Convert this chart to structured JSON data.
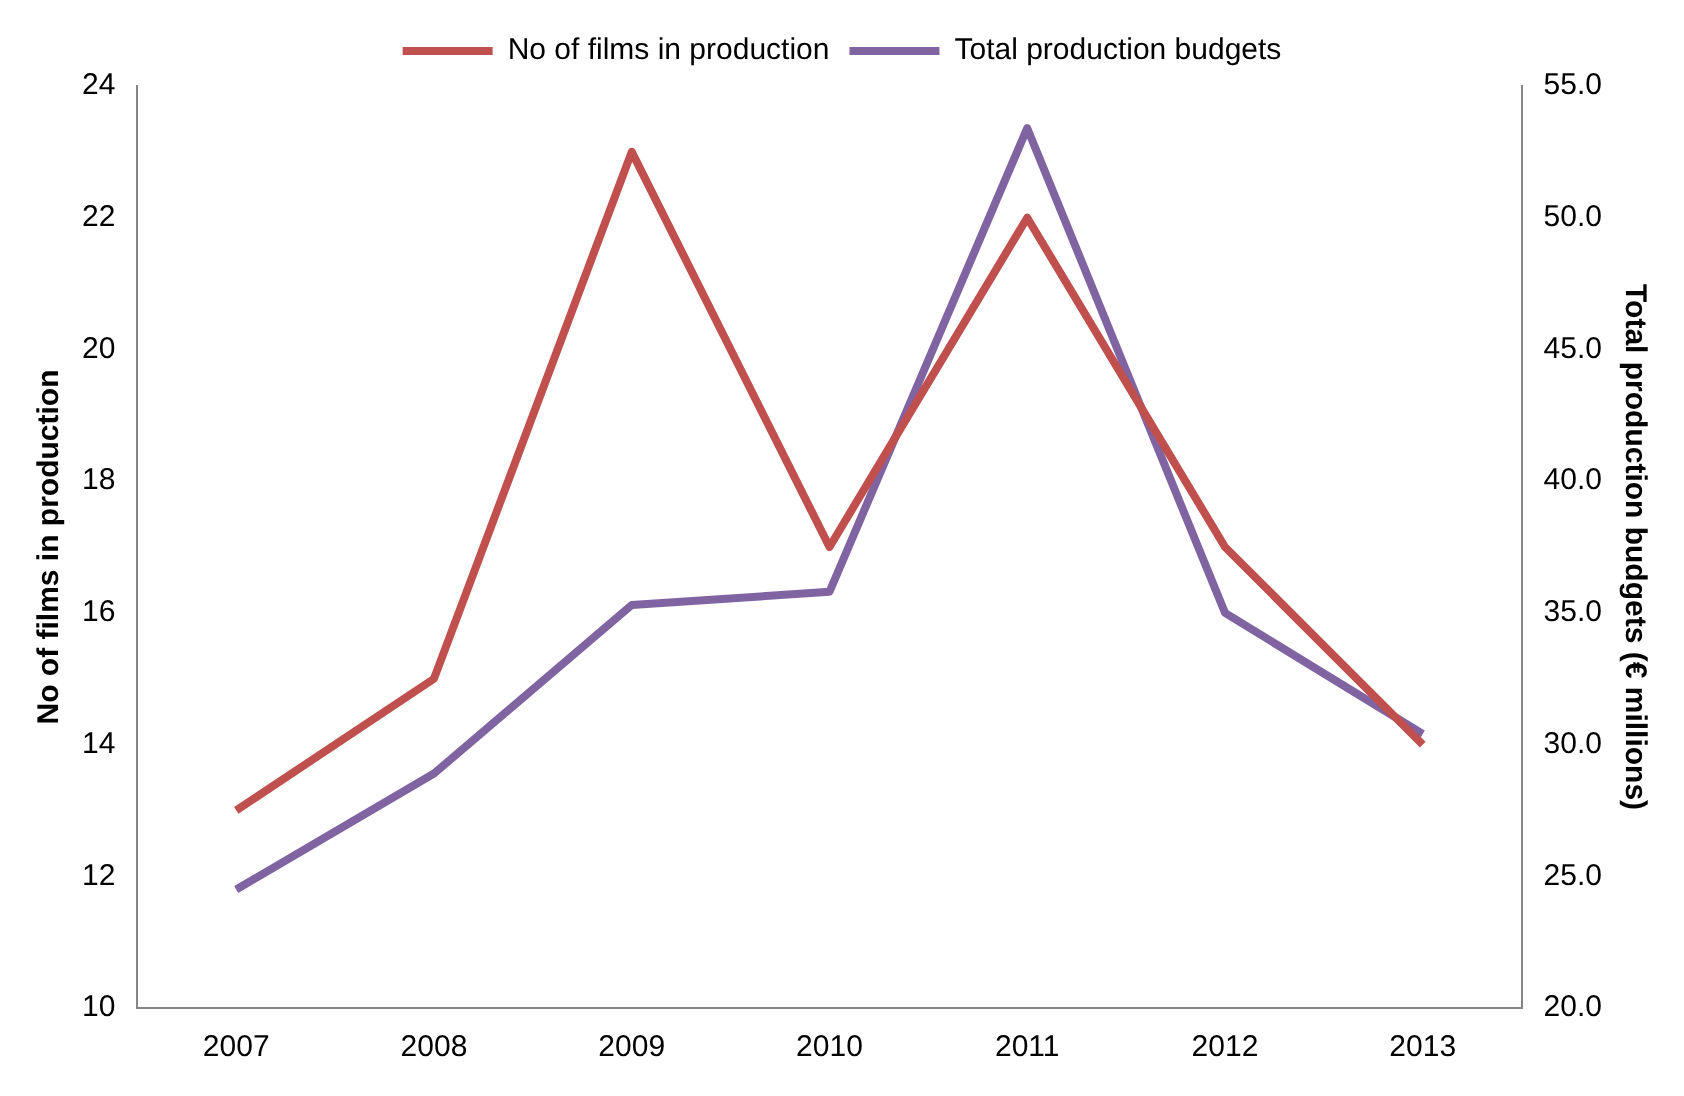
{
  "chart_data": {
    "type": "line",
    "categories": [
      "2007",
      "2008",
      "2009",
      "2010",
      "2011",
      "2012",
      "2013"
    ],
    "series": [
      {
        "name": "No of films in production",
        "color": "#c0504d",
        "values": [
          13,
          15,
          23,
          17,
          22,
          17,
          14
        ]
      },
      {
        "name": "Total production budgets",
        "color": "#8064a2",
        "axis": "y2",
        "values": [
          24.5,
          28.9,
          35.3,
          35.8,
          53.4,
          35.0,
          30.4
        ]
      }
    ],
    "ylabel": "No of films in production",
    "y2label": "Total production budgets (€ millions)",
    "ylim": [
      10,
      24
    ],
    "yticks": [
      10,
      12,
      14,
      16,
      18,
      20,
      22,
      24
    ],
    "y2lim": [
      20,
      55
    ],
    "y2ticks": [
      {
        "value": 20,
        "label": "20.0"
      },
      {
        "value": 25,
        "label": "25.0"
      },
      {
        "value": 30,
        "label": "30.0"
      },
      {
        "value": 35,
        "label": "35.0"
      },
      {
        "value": 40,
        "label": "40.0"
      },
      {
        "value": 45,
        "label": "45.0"
      },
      {
        "value": 50,
        "label": "50.0"
      },
      {
        "value": 55,
        "label": "55.0"
      }
    ],
    "legend": "top",
    "grid": false,
    "marker": "none",
    "line_style": "solid"
  }
}
